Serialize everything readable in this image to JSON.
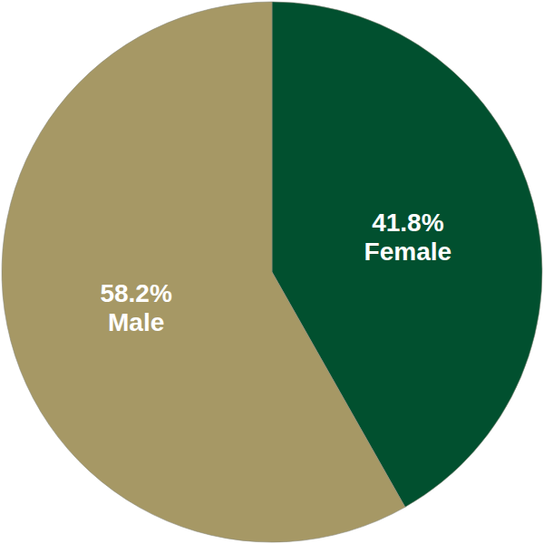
{
  "chart_data": {
    "type": "pie",
    "categories": [
      "Female",
      "Male"
    ],
    "values": [
      41.8,
      58.2
    ],
    "value_labels": [
      "41.8%",
      "58.2%"
    ],
    "colors": [
      "#01502f",
      "#a69865"
    ],
    "data_labels": true
  }
}
